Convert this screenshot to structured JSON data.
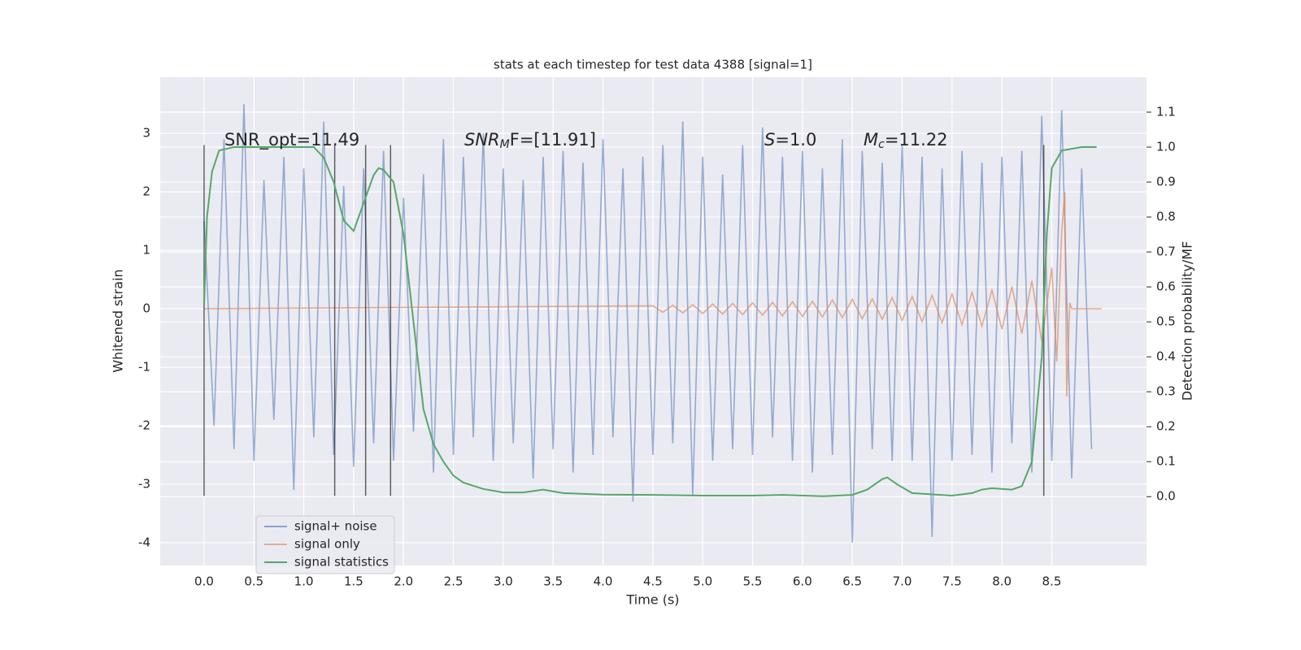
{
  "chart_data": {
    "type": "line",
    "title": "stats at each timestep for test data 4388 [signal=1]",
    "xlabel": "Time (s)",
    "ylabel": "Whitened strain",
    "y2label": "Detection probability/MF",
    "xlim": [
      -0.44,
      9.45
    ],
    "ylim": [
      -4.39,
      3.96
    ],
    "y2lim": [
      -0.197,
      1.2
    ],
    "xticks": [
      {
        "value": 0,
        "label": "0.0"
      },
      0.5,
      {
        "value": 1,
        "label": "1.0"
      },
      1.5,
      {
        "value": 2,
        "label": "2.0"
      },
      2.5,
      {
        "value": 3,
        "label": "3.0"
      },
      3.5,
      {
        "value": 4,
        "label": "4.0"
      },
      4.5,
      {
        "value": 5,
        "label": "5.0"
      },
      5.5,
      {
        "value": 6,
        "label": "6.0"
      },
      6.5,
      {
        "value": 7,
        "label": "7.0"
      },
      7.5,
      {
        "value": 8,
        "label": "8.0"
      },
      8.5
    ],
    "yticks": [
      -4,
      -3,
      -2,
      -1,
      0,
      1,
      2,
      3
    ],
    "y2ticks": [
      {
        "value": 0,
        "label": "0.0"
      },
      0.1,
      0.2,
      0.3,
      0.4,
      0.5,
      0.6,
      0.7,
      0.8,
      0.9,
      {
        "value": 1,
        "label": "1.0"
      },
      1.1
    ],
    "grid": true,
    "legend": "lower left",
    "series": [
      {
        "name": "signal+ noise",
        "color": "#4c72b0",
        "x": [
          0.0,
          0.1,
          0.2,
          0.3,
          0.4,
          0.5,
          0.6,
          0.7,
          0.8,
          0.9,
          1.0,
          1.1,
          1.2,
          1.3,
          1.4,
          1.5,
          1.6,
          1.7,
          1.8,
          1.9,
          2.0,
          2.1,
          2.2,
          2.3,
          2.4,
          2.5,
          2.6,
          2.7,
          2.8,
          2.9,
          3.0,
          3.1,
          3.2,
          3.3,
          3.4,
          3.5,
          3.6,
          3.7,
          3.8,
          3.9,
          4.0,
          4.1,
          4.2,
          4.3,
          4.4,
          4.5,
          4.6,
          4.7,
          4.8,
          4.9,
          5.0,
          5.1,
          5.2,
          5.3,
          5.4,
          5.5,
          5.6,
          5.7,
          5.8,
          5.9,
          6.0,
          6.1,
          6.2,
          6.3,
          6.4,
          6.5,
          6.6,
          6.7,
          6.8,
          6.9,
          7.0,
          7.1,
          7.2,
          7.3,
          7.4,
          7.5,
          7.6,
          7.7,
          7.8,
          7.9,
          8.0,
          8.1,
          8.2,
          8.3,
          8.4,
          8.5,
          8.6,
          8.7,
          8.8,
          8.9
        ],
        "values": [
          1.5,
          -2.0,
          2.9,
          -2.4,
          3.5,
          -2.6,
          2.2,
          -1.9,
          2.6,
          -3.1,
          2.4,
          -2.2,
          3.2,
          -2.5,
          2.1,
          -2.7,
          2.4,
          -2.3,
          2.7,
          -2.6,
          1.9,
          -2.1,
          2.3,
          -2.8,
          2.9,
          -2.5,
          2.6,
          -2.2,
          3.0,
          -2.6,
          2.4,
          -2.3,
          2.2,
          -2.9,
          2.6,
          -2.4,
          2.7,
          -2.8,
          2.5,
          -2.5,
          2.9,
          -2.2,
          2.4,
          -3.3,
          2.6,
          -2.5,
          2.8,
          -2.3,
          3.2,
          -3.2,
          2.6,
          -2.6,
          2.3,
          -2.4,
          2.8,
          -2.5,
          3.1,
          -2.2,
          2.6,
          -2.6,
          2.7,
          -2.8,
          2.4,
          -2.5,
          2.9,
          -4.0,
          2.7,
          -2.4,
          2.5,
          -2.6,
          2.8,
          -2.6,
          2.6,
          -3.9,
          2.4,
          -2.6,
          2.7,
          -2.5,
          2.5,
          -2.8,
          2.6,
          -2.3,
          2.7,
          -2.8,
          3.3,
          -2.6,
          3.4,
          -2.9,
          2.4,
          -2.4
        ]
      },
      {
        "name": "signal only",
        "color": "#dd8452",
        "x": [
          0.0,
          4.5,
          4.6,
          4.7,
          4.8,
          4.9,
          5.0,
          5.1,
          5.2,
          5.3,
          5.4,
          5.5,
          5.6,
          5.7,
          5.8,
          5.9,
          6.0,
          6.1,
          6.2,
          6.3,
          6.4,
          6.5,
          6.6,
          6.7,
          6.8,
          6.9,
          7.0,
          7.1,
          7.2,
          7.3,
          7.4,
          7.5,
          7.6,
          7.7,
          7.8,
          7.9,
          8.0,
          8.1,
          8.2,
          8.3,
          8.4,
          8.5,
          8.55,
          8.6,
          8.63,
          8.65,
          8.68,
          8.7,
          9.0
        ],
        "values": [
          0,
          0.05,
          -0.06,
          0.06,
          -0.07,
          0.07,
          -0.08,
          0.08,
          -0.09,
          0.09,
          -0.1,
          0.1,
          -0.11,
          0.11,
          -0.12,
          0.12,
          -0.13,
          0.13,
          -0.14,
          0.15,
          -0.15,
          0.16,
          -0.17,
          0.17,
          -0.18,
          0.19,
          -0.2,
          0.21,
          -0.22,
          0.23,
          -0.24,
          0.25,
          -0.27,
          0.28,
          -0.3,
          0.32,
          -0.35,
          0.38,
          -0.42,
          0.48,
          -0.56,
          0.7,
          -0.9,
          1.3,
          2.0,
          -1.5,
          0.1,
          0,
          0
        ]
      },
      {
        "name": "signal statistics",
        "color": "#55a868",
        "axis": "y2",
        "x": [
          0.0,
          0.03,
          0.08,
          0.15,
          0.3,
          1.1,
          1.2,
          1.3,
          1.4,
          1.5,
          1.6,
          1.7,
          1.75,
          1.8,
          1.9,
          2.0,
          2.1,
          2.2,
          2.3,
          2.4,
          2.5,
          2.6,
          2.8,
          3.0,
          3.2,
          3.4,
          3.6,
          4.0,
          4.5,
          5.0,
          5.5,
          5.8,
          6.2,
          6.5,
          6.65,
          6.8,
          6.85,
          6.95,
          7.1,
          7.5,
          7.7,
          7.8,
          7.9,
          8.1,
          8.2,
          8.3,
          8.4,
          8.45,
          8.5,
          8.6,
          8.8,
          8.95
        ],
        "values": [
          0.55,
          0.8,
          0.93,
          0.99,
          1.0,
          1.0,
          0.97,
          0.9,
          0.79,
          0.76,
          0.84,
          0.92,
          0.94,
          0.935,
          0.9,
          0.75,
          0.5,
          0.25,
          0.15,
          0.1,
          0.06,
          0.04,
          0.022,
          0.012,
          0.012,
          0.02,
          0.01,
          0.006,
          0.005,
          0.003,
          0.003,
          0.005,
          0.001,
          0.005,
          0.02,
          0.05,
          0.055,
          0.035,
          0.01,
          0.003,
          0.01,
          0.02,
          0.024,
          0.02,
          0.03,
          0.1,
          0.4,
          0.75,
          0.94,
          0.99,
          1.0,
          1.0
        ]
      }
    ],
    "vlines": {
      "x": [
        0,
        1.31,
        1.62,
        1.87,
        8.42
      ],
      "ymin": -3.2,
      "ymax": 2.8
    },
    "annotations": [
      {
        "text": "SNR_opt=11.49"
      },
      {
        "text": "SNR",
        "sub": "M",
        "tail": "F=[11.91]"
      },
      {
        "text": "S",
        "tail": "=1.0"
      },
      {
        "text": "M",
        "sub": "c",
        "tail": "=11.22"
      }
    ]
  }
}
